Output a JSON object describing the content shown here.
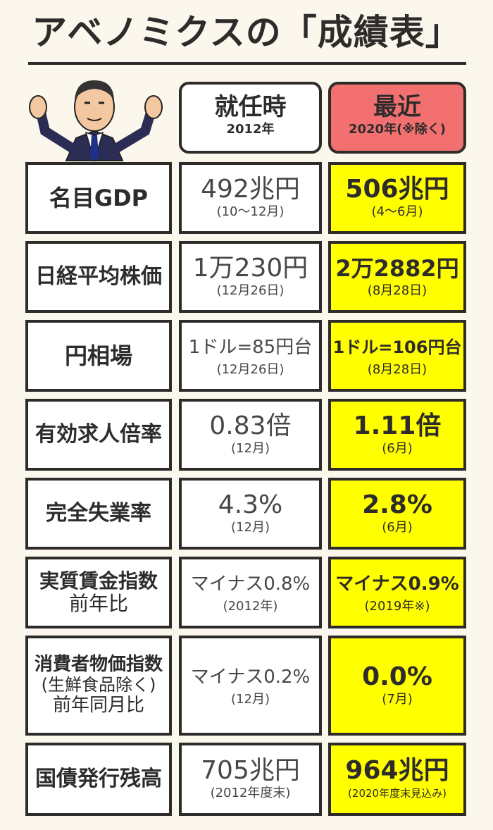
{
  "title": "アベノミクスの「成績表」",
  "header": {
    "then": {
      "main": "就任時",
      "sub": "2012年"
    },
    "now": {
      "main": "最近",
      "sub": "2020年(※除く)"
    }
  },
  "rows": [
    {
      "label": [
        "名目GDP"
      ],
      "then_value": "492兆円",
      "then_date": "(10〜12月)",
      "now_value": "506兆円",
      "now_date": "(4〜6月)"
    },
    {
      "label": [
        "日経平均株価"
      ],
      "then_value": "1万230円",
      "then_date": "(12月26日)",
      "now_value": "2万2882円",
      "now_date": "(8月28日)"
    },
    {
      "label": [
        "円相場"
      ],
      "then_value": "1ドル=85円台",
      "then_date": "(12月26日)",
      "now_value": "1ドル=106円台",
      "now_date": "(8月28日)"
    },
    {
      "label": [
        "有効求人倍率"
      ],
      "then_value": "0.83倍",
      "then_date": "(12月)",
      "now_value": "1.11倍",
      "now_date": "(6月)"
    },
    {
      "label": [
        "完全失業率"
      ],
      "then_value": "4.3%",
      "then_date": "(12月)",
      "now_value": "2.8%",
      "now_date": "(6月)"
    },
    {
      "label": [
        "実質賃金指数",
        "前年比"
      ],
      "then_value": "マイナス0.8%",
      "then_date": "(2012年)",
      "now_value": "マイナス0.9%",
      "now_date": "(2019年※)"
    },
    {
      "label": [
        "消費者物価指数",
        "(生鮮食品除く)",
        "前年同月比"
      ],
      "then_value": "マイナス0.2%",
      "then_date": "(12月)",
      "now_value": "0.0%",
      "now_date": "(7月)"
    },
    {
      "label": [
        "国債発行残高"
      ],
      "then_value": "705兆円",
      "then_date": "(2012年度末)",
      "now_value": "964兆円",
      "now_date": "(2020年度末見込み)"
    }
  ],
  "colors": {
    "header_now": "#f27070",
    "highlight": "#ffff00",
    "ink": "#2e2b2b"
  },
  "illustration": "caricature-of-man-in-suit-raising-hands-icon"
}
